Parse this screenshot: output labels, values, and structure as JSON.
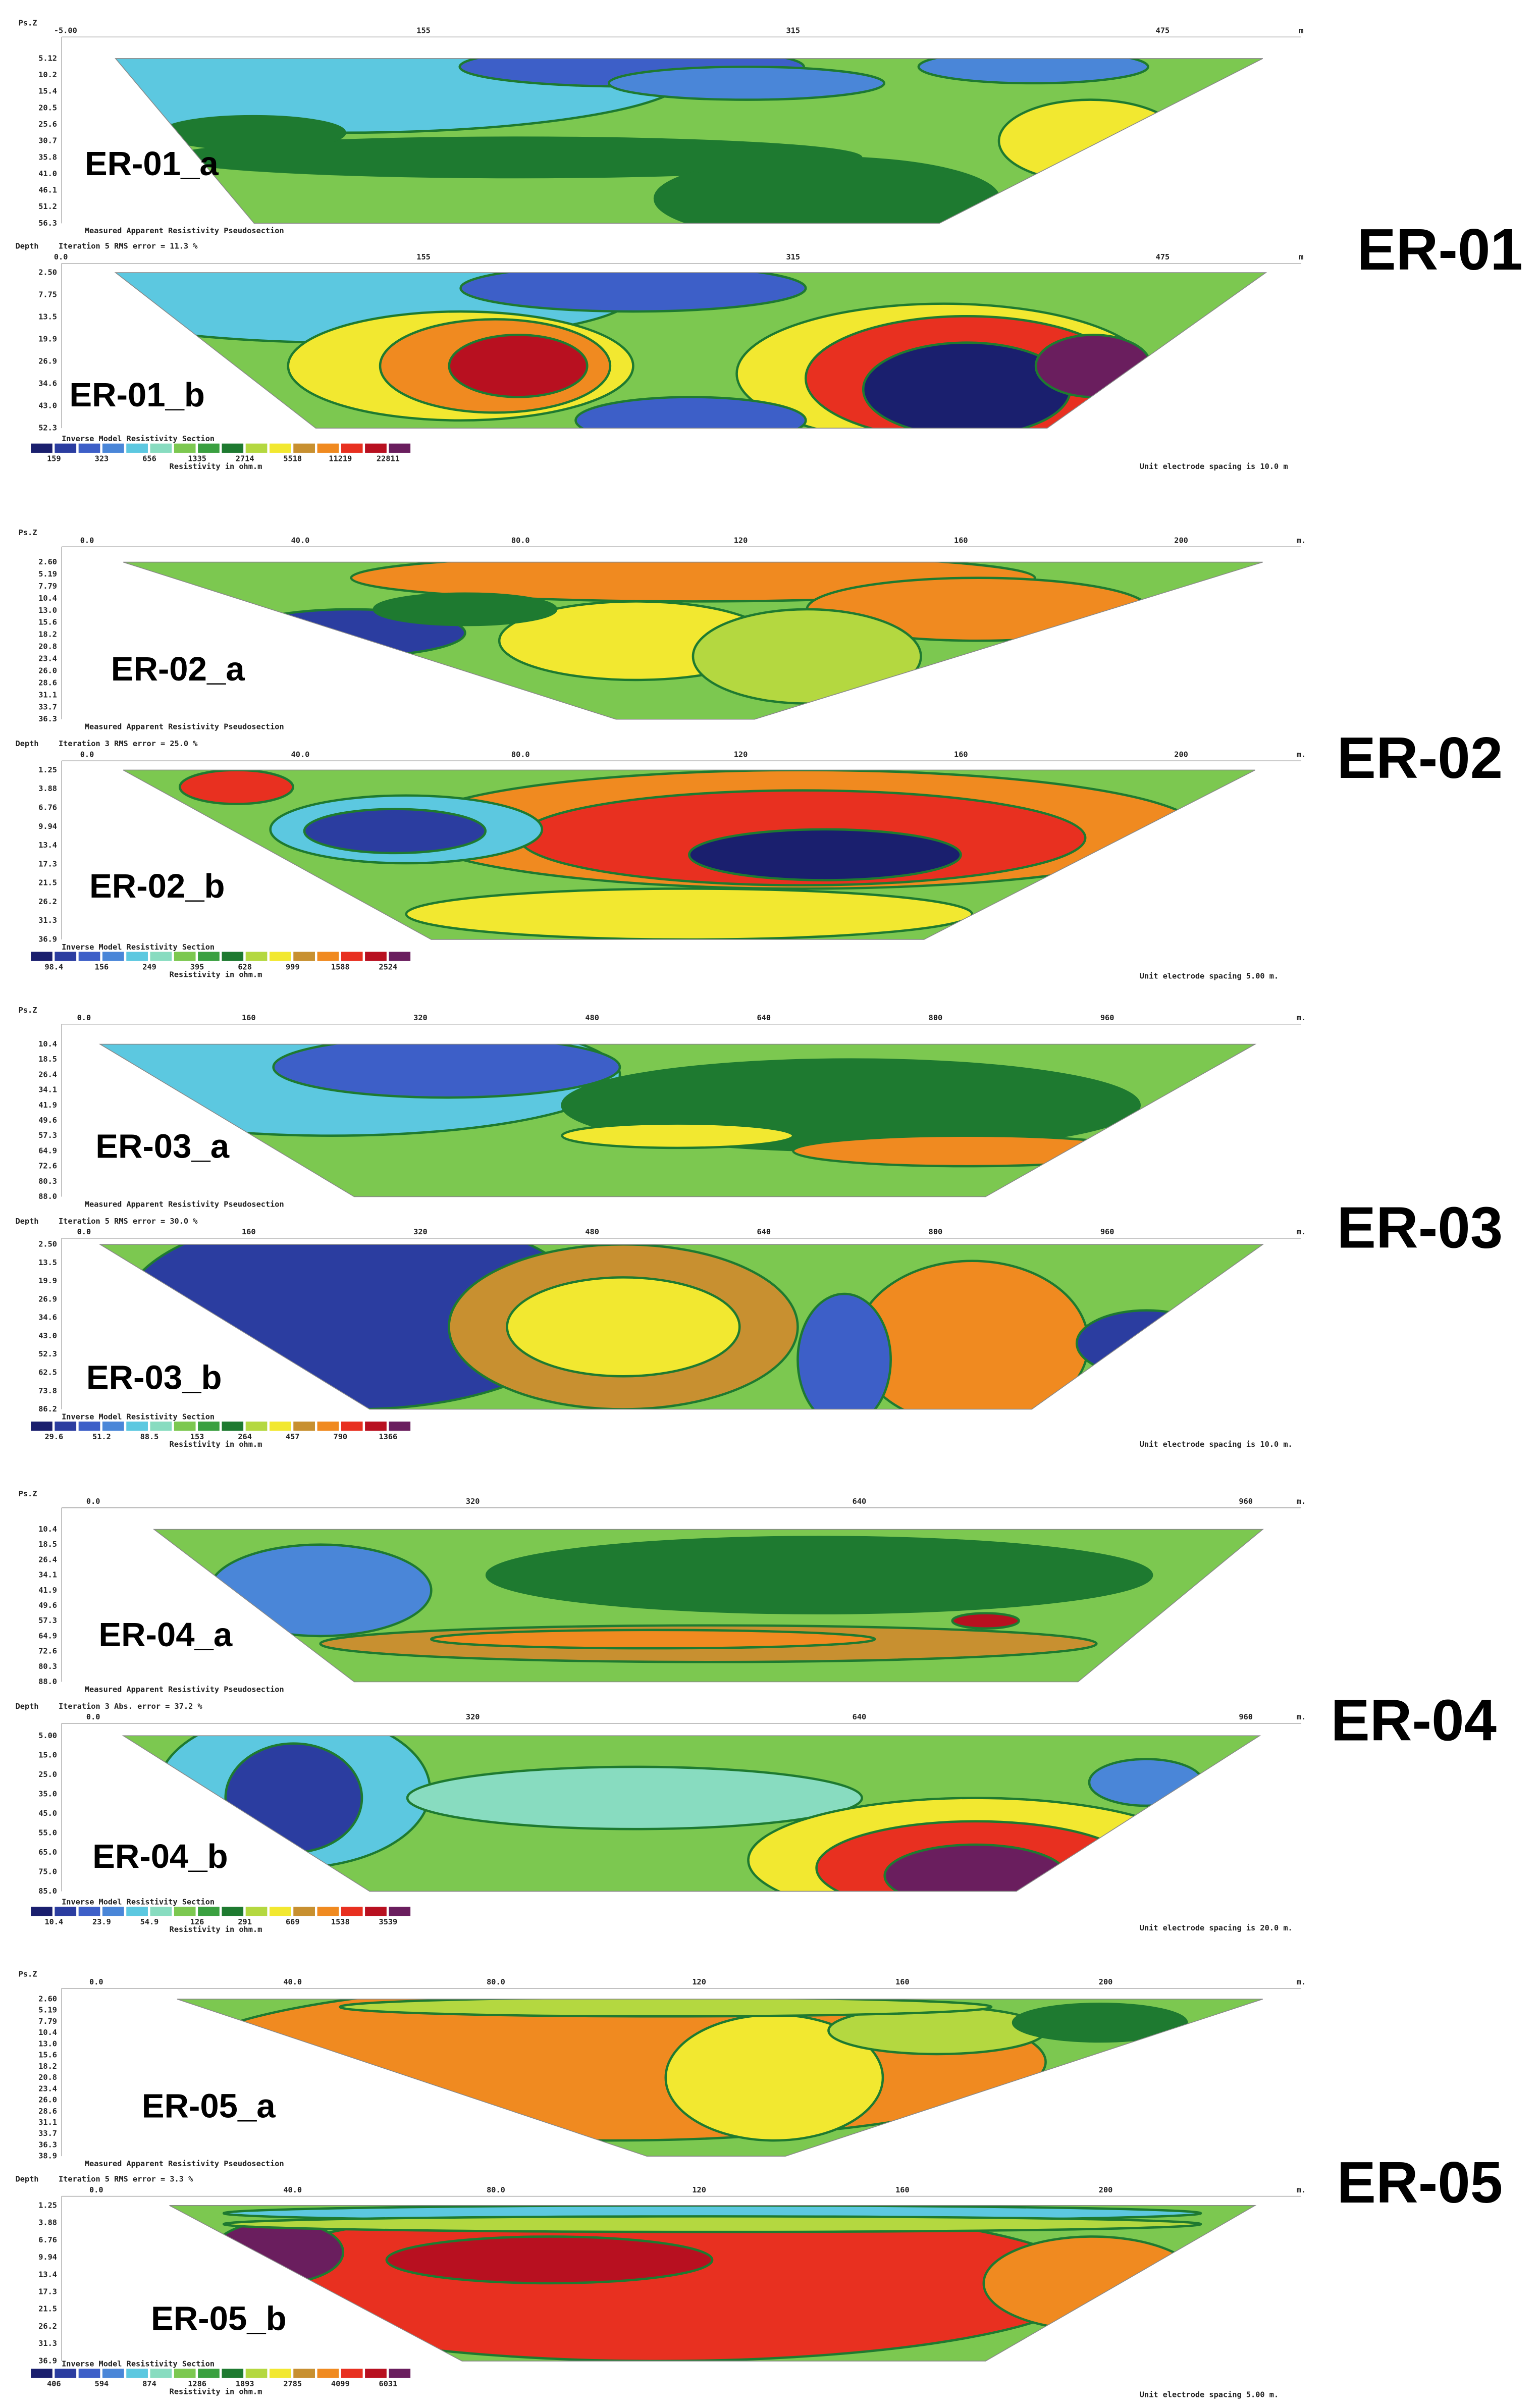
{
  "figure": {
    "groups": [
      {
        "label": "ER-01",
        "a": {
          "label": "ER-01_a",
          "corner": "Ps.Z",
          "x_ticks": [
            "-5.00",
            "155",
            "315",
            "475",
            "m"
          ],
          "depth_ticks": [
            "5.12",
            "10.2",
            "15.4",
            "20.5",
            "25.6",
            "30.7",
            "35.8",
            "41.0",
            "46.1",
            "51.2",
            "56.3"
          ],
          "caption": "Measured Apparent Resistivity Pseudosection"
        },
        "b": {
          "label": "ER-01_b",
          "depth_header": "Depth",
          "iteration": "Iteration 5 RMS error = 11.3 %",
          "x_ticks": [
            "0.0",
            "155",
            "315",
            "475",
            "m"
          ],
          "depth_ticks": [
            "2.50",
            "7.75",
            "13.5",
            "19.9",
            "26.9",
            "34.6",
            "43.0",
            "52.3"
          ],
          "legend_title": "Inverse Model Resistivity Section",
          "legend_values": [
            "159",
            "323",
            "656",
            "1335",
            "2714",
            "5518",
            "11219",
            "22811"
          ],
          "legend_unit": "Resistivity in ohm.m",
          "note": "Unit electrode spacing is 10.0 m"
        }
      },
      {
        "label": "ER-02",
        "a": {
          "label": "ER-02_a",
          "corner": "Ps.Z",
          "x_ticks": [
            "0.0",
            "40.0",
            "80.0",
            "120",
            "160",
            "200",
            "m."
          ],
          "depth_ticks": [
            "2.60",
            "5.19",
            "7.79",
            "10.4",
            "13.0",
            "15.6",
            "18.2",
            "20.8",
            "23.4",
            "26.0",
            "28.6",
            "31.1",
            "33.7",
            "36.3"
          ],
          "caption": "Measured Apparent Resistivity Pseudosection"
        },
        "b": {
          "label": "ER-02_b",
          "depth_header": "Depth",
          "iteration": "Iteration 3 RMS error = 25.0 %",
          "x_ticks": [
            "0.0",
            "40.0",
            "80.0",
            "120",
            "160",
            "200",
            "m."
          ],
          "depth_ticks": [
            "1.25",
            "3.88",
            "6.76",
            "9.94",
            "13.4",
            "17.3",
            "21.5",
            "26.2",
            "31.3",
            "36.9"
          ],
          "legend_title": "Inverse Model Resistivity Section",
          "legend_values": [
            "98.4",
            "156",
            "249",
            "395",
            "628",
            "999",
            "1588",
            "2524"
          ],
          "legend_unit": "Resistivity in ohm.m",
          "note": "Unit electrode spacing 5.00 m."
        }
      },
      {
        "label": "ER-03",
        "a": {
          "label": "ER-03_a",
          "corner": "Ps.Z",
          "x_ticks": [
            "0.0",
            "160",
            "320",
            "480",
            "640",
            "800",
            "960",
            "m."
          ],
          "depth_ticks": [
            "10.4",
            "18.5",
            "26.4",
            "34.1",
            "41.9",
            "49.6",
            "57.3",
            "64.9",
            "72.6",
            "80.3",
            "88.0"
          ],
          "caption": "Measured Apparent Resistivity Pseudosection"
        },
        "b": {
          "label": "ER-03_b",
          "depth_header": "Depth",
          "iteration": "Iteration 5 RMS error = 30.0 %",
          "x_ticks": [
            "0.0",
            "160",
            "320",
            "480",
            "640",
            "800",
            "960",
            "m."
          ],
          "depth_ticks": [
            "2.50",
            "13.5",
            "19.9",
            "26.9",
            "34.6",
            "43.0",
            "52.3",
            "62.5",
            "73.8",
            "86.2"
          ],
          "legend_title": "Inverse Model Resistivity Section",
          "legend_values": [
            "29.6",
            "51.2",
            "88.5",
            "153",
            "264",
            "457",
            "790",
            "1366"
          ],
          "legend_unit": "Resistivity in ohm.m",
          "note": "Unit electrode spacing is 10.0 m."
        }
      },
      {
        "label": "ER-04",
        "a": {
          "label": "ER-04_a",
          "corner": "Ps.Z",
          "x_ticks": [
            "0.0",
            "320",
            "640",
            "960",
            "m."
          ],
          "depth_ticks": [
            "10.4",
            "18.5",
            "26.4",
            "34.1",
            "41.9",
            "49.6",
            "57.3",
            "64.9",
            "72.6",
            "80.3",
            "88.0"
          ],
          "caption": "Measured Apparent Resistivity Pseudosection"
        },
        "b": {
          "label": "ER-04_b",
          "depth_header": "Depth",
          "iteration": "Iteration 3 Abs. error = 37.2 %",
          "x_ticks": [
            "0.0",
            "320",
            "640",
            "960",
            "m."
          ],
          "depth_ticks": [
            "5.00",
            "15.0",
            "25.0",
            "35.0",
            "45.0",
            "55.0",
            "65.0",
            "75.0",
            "85.0"
          ],
          "legend_title": "Inverse Model Resistivity Section",
          "legend_values": [
            "10.4",
            "23.9",
            "54.9",
            "126",
            "291",
            "669",
            "1538",
            "3539"
          ],
          "legend_unit": "Resistivity in ohm.m",
          "note": "Unit electrode spacing is 20.0 m."
        }
      },
      {
        "label": "ER-05",
        "a": {
          "label": "ER-05_a",
          "corner": "Ps.Z",
          "x_ticks": [
            "0.0",
            "40.0",
            "80.0",
            "120",
            "160",
            "200",
            "m."
          ],
          "depth_ticks": [
            "2.60",
            "5.19",
            "7.79",
            "10.4",
            "13.0",
            "15.6",
            "18.2",
            "20.8",
            "23.4",
            "26.0",
            "28.6",
            "31.1",
            "33.7",
            "36.3",
            "38.9"
          ],
          "caption": "Measured Apparent Resistivity Pseudosection"
        },
        "b": {
          "label": "ER-05_b",
          "depth_header": "Depth",
          "iteration": "Iteration 5 RMS error = 3.3 %",
          "x_ticks": [
            "0.0",
            "40.0",
            "80.0",
            "120",
            "160",
            "200",
            "m."
          ],
          "depth_ticks": [
            "1.25",
            "3.88",
            "6.76",
            "9.94",
            "13.4",
            "17.3",
            "21.5",
            "26.2",
            "31.3",
            "36.9"
          ],
          "legend_title": "Inverse Model Resistivity Section",
          "legend_values": [
            "406",
            "594",
            "874",
            "1286",
            "1893",
            "2785",
            "4099",
            "6031"
          ],
          "legend_unit": "Resistivity in ohm.m",
          "note": "Unit electrode spacing 5.00 m."
        }
      }
    ]
  }
}
